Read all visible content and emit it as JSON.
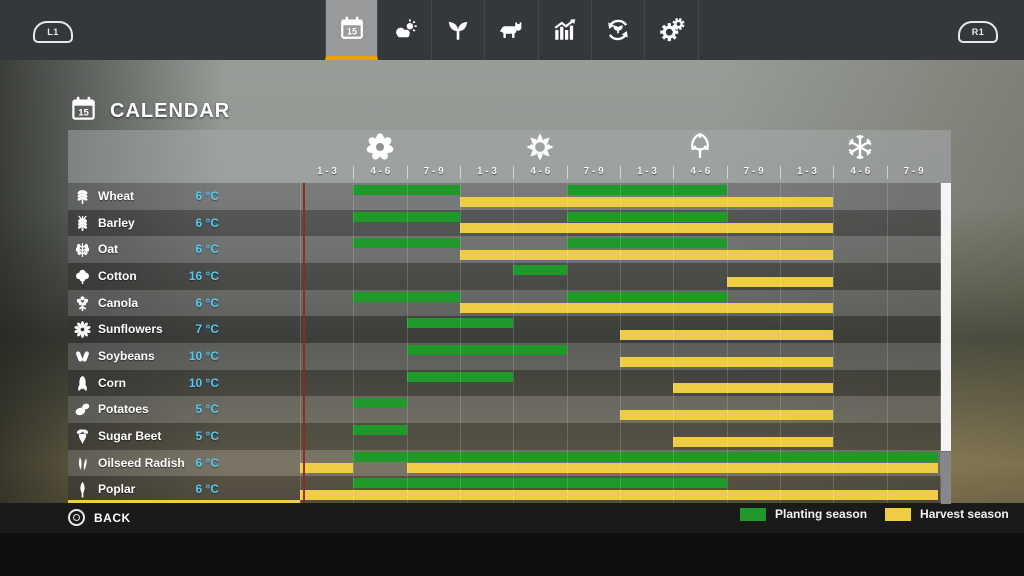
{
  "nav": {
    "left_shoulder": "L1",
    "right_shoulder": "R1",
    "tabs": [
      {
        "name": "calendar",
        "icon": "calendar-icon",
        "selected": true
      },
      {
        "name": "weather",
        "icon": "weather-icon",
        "selected": false
      },
      {
        "name": "crops",
        "icon": "sprout-icon",
        "selected": false
      },
      {
        "name": "animals",
        "icon": "cow-icon",
        "selected": false
      },
      {
        "name": "statistics",
        "icon": "chart-icon",
        "selected": false
      },
      {
        "name": "crop-rotation",
        "icon": "rotation-icon",
        "selected": false
      },
      {
        "name": "settings",
        "icon": "gears-icon",
        "selected": false
      }
    ]
  },
  "page": {
    "title": "CALENDAR",
    "title_icon": "calendar-icon",
    "title_icon_day": "15"
  },
  "calendar": {
    "seasons": [
      {
        "name": "spring",
        "icon": "spring-flower-icon",
        "months": [
          "1 - 3",
          "4 - 6",
          "7 - 9"
        ]
      },
      {
        "name": "summer",
        "icon": "summer-sun-icon",
        "months": [
          "1 - 3",
          "4 - 6",
          "7 - 9"
        ]
      },
      {
        "name": "autumn",
        "icon": "autumn-leaf-icon",
        "months": [
          "1 - 3",
          "4 - 6",
          "7 - 9"
        ]
      },
      {
        "name": "winter",
        "icon": "winter-snowflake-icon",
        "months": [
          "1 - 3",
          "4 - 6",
          "7 - 9"
        ]
      }
    ],
    "crops": [
      {
        "name": "Wheat",
        "temp": "6 °C",
        "icon": "wheat-icon",
        "planting": [
          [
            2,
            3
          ],
          [
            6,
            8
          ]
        ],
        "harvest": [
          [
            4,
            10
          ]
        ]
      },
      {
        "name": "Barley",
        "temp": "6 °C",
        "icon": "barley-icon",
        "planting": [
          [
            2,
            3
          ],
          [
            6,
            8
          ]
        ],
        "harvest": [
          [
            4,
            10
          ]
        ]
      },
      {
        "name": "Oat",
        "temp": "6 °C",
        "icon": "oat-icon",
        "planting": [
          [
            2,
            3
          ],
          [
            6,
            8
          ]
        ],
        "harvest": [
          [
            4,
            10
          ]
        ]
      },
      {
        "name": "Cotton",
        "temp": "16 °C",
        "icon": "cotton-icon",
        "planting": [
          [
            5,
            5
          ]
        ],
        "harvest": [
          [
            9,
            10
          ]
        ]
      },
      {
        "name": "Canola",
        "temp": "6 °C",
        "icon": "canola-icon",
        "planting": [
          [
            2,
            3
          ],
          [
            6,
            8
          ]
        ],
        "harvest": [
          [
            4,
            10
          ]
        ]
      },
      {
        "name": "Sunflowers",
        "temp": "7 °C",
        "icon": "sunflower-icon",
        "planting": [
          [
            3,
            4
          ]
        ],
        "harvest": [
          [
            7,
            10
          ]
        ]
      },
      {
        "name": "Soybeans",
        "temp": "10 °C",
        "icon": "soybean-icon",
        "planting": [
          [
            3,
            5
          ]
        ],
        "harvest": [
          [
            7,
            10
          ]
        ]
      },
      {
        "name": "Corn",
        "temp": "10 °C",
        "icon": "corn-icon",
        "planting": [
          [
            3,
            4
          ]
        ],
        "harvest": [
          [
            8,
            10
          ]
        ]
      },
      {
        "name": "Potatoes",
        "temp": "5 °C",
        "icon": "potato-icon",
        "planting": [
          [
            2,
            2
          ]
        ],
        "harvest": [
          [
            7,
            10
          ]
        ]
      },
      {
        "name": "Sugar Beet",
        "temp": "5 °C",
        "icon": "sugarbeet-icon",
        "planting": [
          [
            2,
            2
          ]
        ],
        "harvest": [
          [
            8,
            10
          ]
        ]
      },
      {
        "name": "Oilseed Radish",
        "temp": "6 °C",
        "icon": "oilseed-radish-icon",
        "planting": [
          [
            2,
            12
          ]
        ],
        "harvest": [
          [
            1,
            1
          ],
          [
            3,
            12
          ]
        ]
      },
      {
        "name": "Poplar",
        "temp": "6 °C",
        "icon": "poplar-icon",
        "planting": [
          [
            2,
            8
          ]
        ],
        "harvest": [
          [
            1,
            12
          ]
        ]
      }
    ],
    "legend": [
      {
        "label": "Planting season",
        "color": "#1f9a2a"
      },
      {
        "label": "Harvest season",
        "color": "#eecd44"
      }
    ],
    "colors": {
      "planting": "#1f9a2a",
      "harvest": "#eecd44",
      "temperature": "#56c8f2",
      "accent_orange": "#eca300",
      "current_time_line": "#8e2a1e"
    }
  },
  "footer": {
    "back_label": "BACK"
  }
}
